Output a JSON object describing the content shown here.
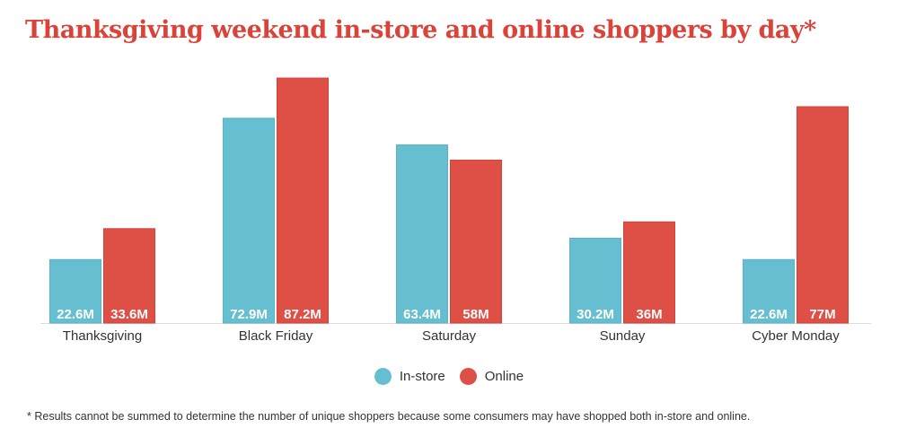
{
  "chart_data": {
    "type": "bar",
    "title": "Thanksgiving weekend in-store and online shoppers by day*",
    "categories": [
      "Thanksgiving",
      "Black Friday",
      "Saturday",
      "Sunday",
      "Cyber Monday"
    ],
    "series": [
      {
        "name": "In-store",
        "color": "#65bfd0",
        "values": [
          22.6,
          72.9,
          63.4,
          30.2,
          22.6
        ],
        "labels": [
          "22.6M",
          "72.9M",
          "63.4M",
          "30.2M",
          "22.6M"
        ]
      },
      {
        "name": "Online",
        "color": "#de4f46",
        "values": [
          33.6,
          87.2,
          58,
          36,
          77
        ],
        "labels": [
          "33.6M",
          "87.2M",
          "58M",
          "36M",
          "77M"
        ]
      }
    ],
    "unit": "M",
    "ylim": [
      0,
      87.2
    ],
    "grid": false,
    "legend_position": "bottom-center",
    "footnote": "* Results cannot be summed to determine the number of unique shoppers because some consumers may have shopped both in-store and online."
  }
}
